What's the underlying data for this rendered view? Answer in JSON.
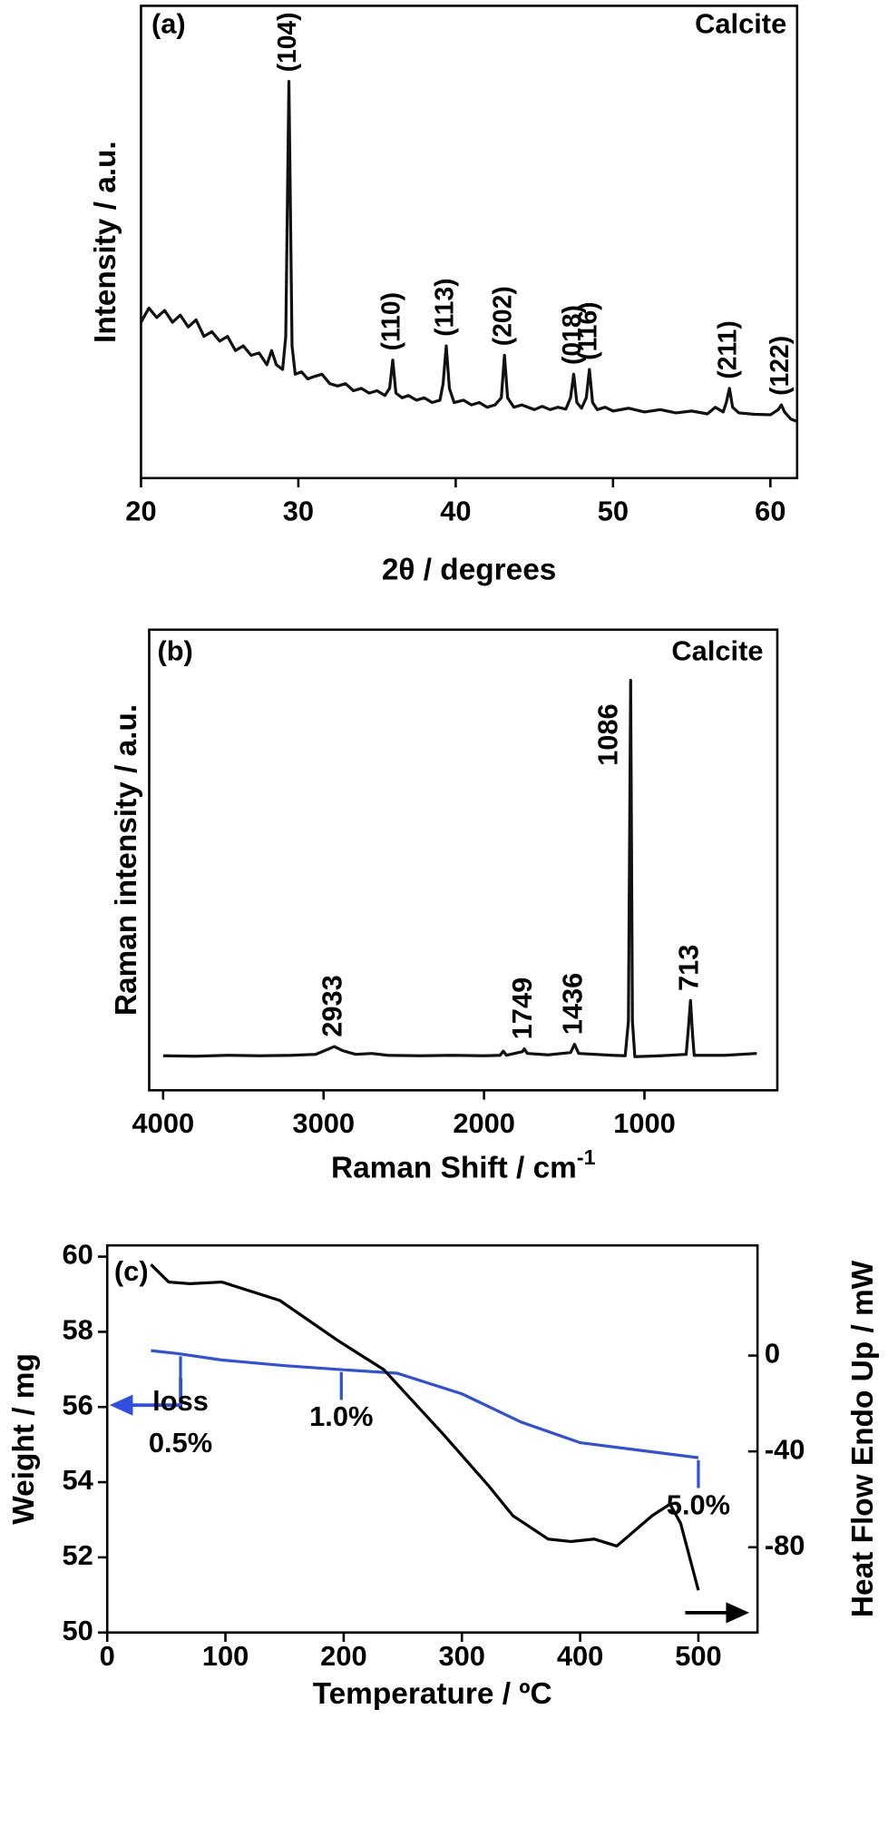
{
  "chart_data": [
    {
      "type": "line",
      "panel_label": "(a)",
      "note": "Calcite",
      "x_label": "2θ / degrees",
      "y_label": "Intensity / a.u.",
      "xlim": [
        20,
        61.7
      ],
      "xticks": [
        20,
        30,
        40,
        50,
        60
      ],
      "ylim": [
        0,
        100
      ],
      "series": [
        {
          "color": "#111111",
          "x": [
            20,
            20.5,
            21,
            21.5,
            22,
            22.5,
            23,
            23.5,
            24,
            24.5,
            25,
            25.5,
            26,
            26.5,
            27,
            27.5,
            28,
            28.3,
            28.6,
            29,
            29.2,
            29.4,
            29.6,
            29.8,
            30.2,
            30.6,
            31,
            31.5,
            32,
            32.5,
            33,
            33.5,
            34,
            34.5,
            35,
            35.5,
            35.8,
            36,
            36.2,
            36.6,
            37,
            37.5,
            38,
            38.5,
            39,
            39.2,
            39.4,
            39.6,
            39.9,
            40.5,
            41,
            41.5,
            42,
            42.5,
            42.9,
            43.1,
            43.3,
            43.7,
            44.2,
            45,
            45.5,
            46,
            46.5,
            47,
            47.3,
            47.5,
            47.7,
            48,
            48.3,
            48.5,
            48.7,
            49,
            49.5,
            50,
            51,
            52,
            53,
            54,
            55,
            56,
            56.5,
            57,
            57.2,
            57.4,
            57.6,
            58,
            59,
            60,
            60.5,
            60.7,
            60.9,
            61.3,
            61.7
          ],
          "values": [
            33,
            36,
            34,
            35.5,
            33,
            34.5,
            32,
            33.5,
            30,
            31,
            29,
            30,
            27,
            28,
            26,
            26.5,
            24,
            27,
            24,
            23,
            30,
            84,
            28,
            22,
            22.5,
            21,
            21.5,
            22,
            20,
            19.5,
            20,
            18.5,
            19,
            18,
            18.5,
            17.5,
            19,
            25,
            18,
            17,
            17.5,
            16.5,
            17,
            16,
            16.5,
            20,
            28,
            19,
            16,
            16.5,
            15.5,
            16,
            15,
            15.5,
            17,
            26,
            17,
            15,
            15.5,
            14.5,
            15.2,
            14.5,
            15,
            14.6,
            17,
            22,
            16,
            14.8,
            17,
            23,
            16,
            14.5,
            15,
            14.2,
            14.8,
            14,
            14.5,
            13.8,
            14.2,
            13.6,
            15,
            14,
            16,
            19,
            15,
            13.8,
            13.5,
            13.4,
            14.5,
            15.5,
            14,
            12.5,
            12
          ]
        }
      ],
      "annotations": [
        {
          "text": "(104)",
          "x": 29.4
        },
        {
          "text": "(110)",
          "x": 36
        },
        {
          "text": "(113)",
          "x": 39.4
        },
        {
          "text": "(202)",
          "x": 43.1
        },
        {
          "text": "(018)",
          "x": 47.5
        },
        {
          "text": "(116)",
          "x": 48.5
        },
        {
          "text": "(211)",
          "x": 57.4
        },
        {
          "text": "(122)",
          "x": 60.7
        }
      ]
    },
    {
      "type": "line",
      "panel_label": "(b)",
      "note": "Calcite",
      "x_label": "Raman Shift / cm",
      "x_label_sup": "-1",
      "y_label": "Raman intensity / a.u.",
      "xlim": [
        4087,
        172
      ],
      "xticks": [
        4000,
        3000,
        2000,
        1000
      ],
      "ylim": [
        0,
        100
      ],
      "series": [
        {
          "color": "#111111",
          "x": [
            4000,
            3800,
            3600,
            3400,
            3200,
            3050,
            2980,
            2933,
            2880,
            2800,
            2700,
            2600,
            2400,
            2200,
            2000,
            1900,
            1880,
            1860,
            1760,
            1749,
            1730,
            1600,
            1460,
            1436,
            1410,
            1200,
            1120,
            1100,
            1086,
            1075,
            1060,
            900,
            740,
            725,
            713,
            700,
            690,
            500,
            300
          ],
          "values": [
            7.5,
            7.4,
            7.6,
            7.5,
            7.6,
            7.8,
            8.8,
            9.5,
            8.6,
            7.8,
            8,
            7.6,
            7.5,
            7.6,
            7.5,
            7.6,
            8.5,
            7.6,
            8.4,
            9,
            8,
            7.7,
            8.2,
            10,
            8,
            7.6,
            7.5,
            15,
            89,
            15,
            7.3,
            7.5,
            7.8,
            14,
            19.5,
            12,
            7.6,
            7.6,
            8
          ]
        }
      ],
      "peak_labels": [
        2933,
        1749,
        1436,
        1086,
        713
      ]
    },
    {
      "type": "line",
      "panel_label": "(c)",
      "x_label": "Temperature / ºC",
      "y_label": "Weight / mg",
      "y2_label": "Heat Flow Endo Up / mW",
      "xlim": [
        0,
        550
      ],
      "xticks": [
        0,
        100,
        200,
        300,
        400,
        500
      ],
      "ylim": [
        50,
        60.3
      ],
      "yticks": [
        50,
        52,
        54,
        56,
        58,
        60
      ],
      "y2lim": [
        -115.6,
        46
      ],
      "y2ticks": [
        -80,
        -40,
        0
      ],
      "series": [
        {
          "color": "#2f4fe0",
          "x": [
            37,
            60,
            97,
            150,
            195,
            245,
            300,
            350,
            400,
            450,
            500
          ],
          "values": [
            57.5,
            57.42,
            57.25,
            57.1,
            57.0,
            56.9,
            56.35,
            55.6,
            55.05,
            54.85,
            54.65
          ]
        },
        {
          "color": "#000000",
          "axis": "y2",
          "x": [
            37,
            52,
            70,
            97,
            146,
            195,
            234,
            284,
            323,
            343,
            373,
            392,
            412,
            431,
            461,
            476,
            485,
            500
          ],
          "values": [
            38,
            30.7,
            30,
            30.7,
            23,
            6.3,
            -5.9,
            -32.7,
            -54.6,
            -66.8,
            -76.6,
            -77.6,
            -76.6,
            -79.5,
            -66.8,
            -62,
            -70,
            -98
          ]
        }
      ],
      "annotations": [
        {
          "lines": [
            "loss",
            "0.5%"
          ],
          "x": 62
        },
        {
          "lines": [
            "1.0%"
          ],
          "x": 198
        },
        {
          "lines": [
            "5.0%"
          ],
          "x": 500
        }
      ]
    }
  ]
}
